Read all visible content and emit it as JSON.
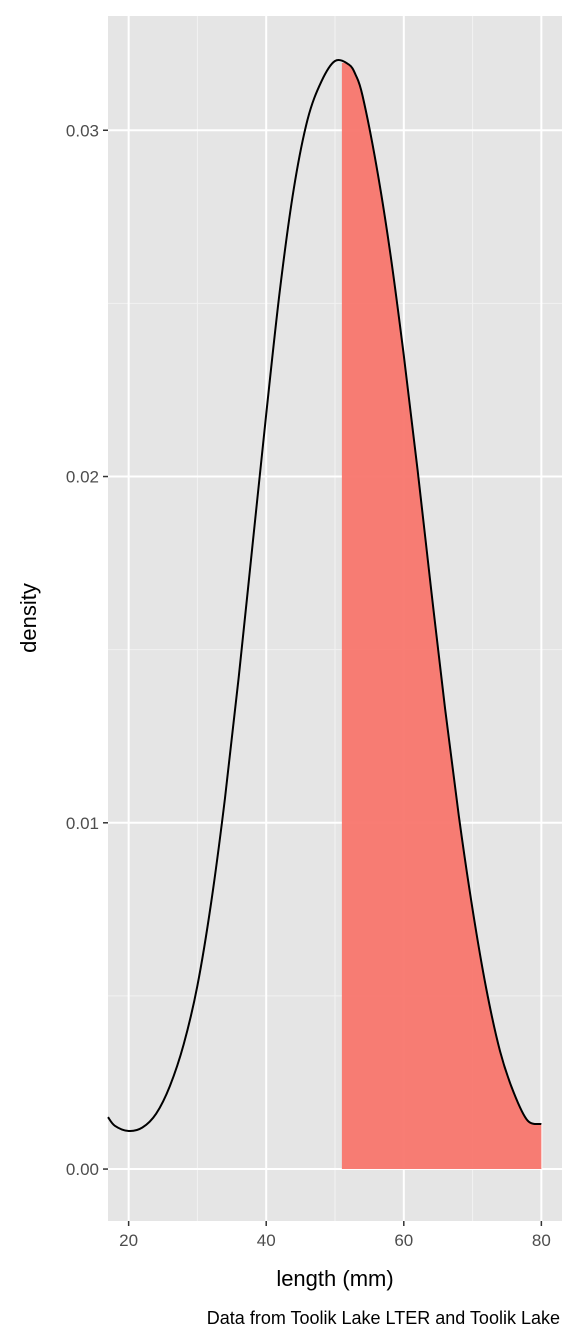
{
  "chart_data": {
    "type": "area",
    "xlabel": "length (mm)",
    "ylabel": "density",
    "caption": "Data from Toolik Lake LTER and Toolik Lake",
    "xlim": [
      17,
      83
    ],
    "ylim": [
      -0.0015,
      0.0333
    ],
    "x_ticks": [
      20,
      40,
      60,
      80
    ],
    "x_tick_labels": [
      "20",
      "40",
      "60",
      "80"
    ],
    "x_minor_ticks": [
      30,
      50,
      70
    ],
    "y_ticks": [
      0.0,
      0.01,
      0.02,
      0.03
    ],
    "y_tick_labels": [
      "0.00",
      "0.01",
      "0.02",
      "0.03"
    ],
    "y_minor_ticks": [
      0.005,
      0.015,
      0.025
    ],
    "grid": true,
    "panel_background": "#e5e5e5",
    "shade_color": "#f8766d",
    "line_color": "#000000",
    "shade_from_x": 51,
    "series": [
      {
        "x": [
          17,
          18,
          20,
          22,
          24,
          26,
          28,
          30,
          32,
          34,
          36,
          38,
          40,
          42,
          44,
          46,
          48,
          50,
          52,
          53,
          54,
          56,
          58,
          60,
          62,
          64,
          66,
          68,
          70,
          72,
          74,
          76,
          78,
          80
        ],
        "y": [
          0.0015,
          0.00125,
          0.0011,
          0.0012,
          0.0016,
          0.0024,
          0.0036,
          0.0053,
          0.0077,
          0.0107,
          0.0142,
          0.018,
          0.0218,
          0.0254,
          0.0283,
          0.0303,
          0.0314,
          0.032,
          0.0319,
          0.0316,
          0.031,
          0.029,
          0.0265,
          0.0235,
          0.0202,
          0.0167,
          0.0133,
          0.0102,
          0.0075,
          0.0052,
          0.0034,
          0.0022,
          0.0014,
          0.0013
        ]
      }
    ]
  }
}
